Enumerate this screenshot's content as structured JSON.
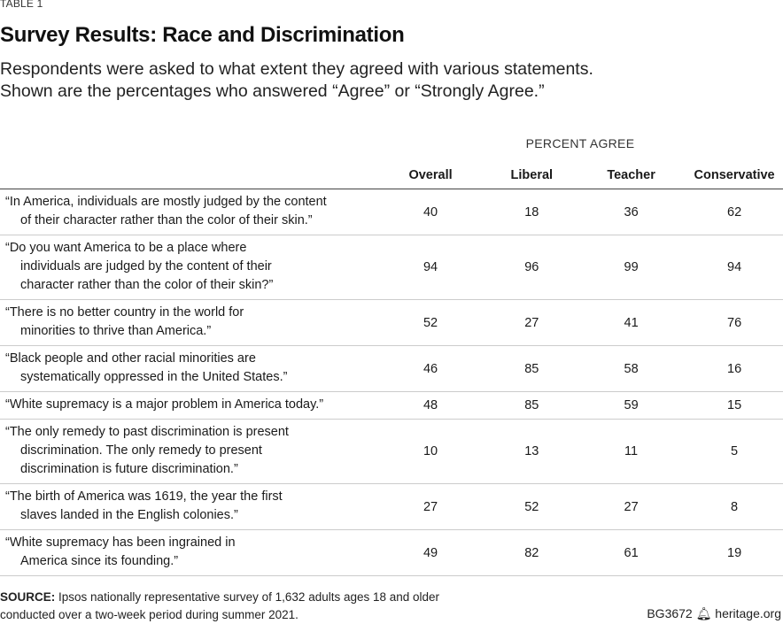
{
  "label": "TABLE 1",
  "title": "Survey Results: Race and Discrimination",
  "subtitle": [
    "Respondents were asked to what extent they agreed with various statements.",
    "Shown are the percentages who answered “Agree” or “Strongly Agree.”"
  ],
  "column_group": "PERCENT AGREE",
  "columns": [
    "Overall",
    "Liberal",
    "Teacher",
    "Conservative"
  ],
  "rows": [
    {
      "lines": [
        "“In America, individuals are mostly judged by the content",
        "of their character rather than the color of their skin.”"
      ],
      "values": [
        40,
        18,
        36,
        62
      ]
    },
    {
      "lines": [
        "“Do you want America to be a place where",
        "individuals are judged by the content of their",
        "character rather than the color of their skin?”"
      ],
      "values": [
        94,
        96,
        99,
        94
      ]
    },
    {
      "lines": [
        "“There is no better country in the world for",
        "minorities to thrive than America.”"
      ],
      "values": [
        52,
        27,
        41,
        76
      ]
    },
    {
      "lines": [
        "“Black people and other racial minorities are",
        "systematically oppressed in the United States.”"
      ],
      "values": [
        46,
        85,
        58,
        16
      ]
    },
    {
      "lines": [
        "“White supremacy is a major problem in America today.”"
      ],
      "values": [
        48,
        85,
        59,
        15
      ]
    },
    {
      "lines": [
        "“The only remedy to past discrimination is present",
        "discrimination. The only remedy to present",
        "discrimination is future discrimination.”"
      ],
      "values": [
        10,
        13,
        11,
        5
      ]
    },
    {
      "lines": [
        "“The birth of America was 1619, the year the first",
        "slaves landed in the English colonies.”"
      ],
      "values": [
        27,
        52,
        27,
        8
      ]
    },
    {
      "lines": [
        "“White supremacy has been ingrained in",
        "America since its founding.”"
      ],
      "values": [
        49,
        82,
        61,
        19
      ]
    }
  ],
  "source_label": "SOURCE:",
  "source": [
    "Ipsos nationally representative survey of 1,632 adults ages 18 and older",
    "conducted over a two-week period during summer 2021."
  ],
  "credit_id": "BG3672",
  "credit_site": "heritage.org",
  "chart_data": {
    "type": "table",
    "title": "Survey Results: Race and Discrimination",
    "columns": [
      "Overall",
      "Liberal",
      "Teacher",
      "Conservative"
    ],
    "unit": "PERCENT AGREE"
  }
}
